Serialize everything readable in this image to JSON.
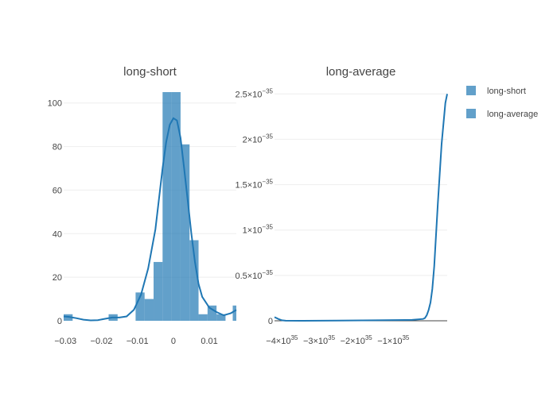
{
  "chart_data": [
    {
      "type": "histogram",
      "title": "long-short",
      "series_name": "long-short",
      "color": "#1f77b4",
      "xlim": [
        -0.0305,
        0.0175
      ],
      "ylim": [
        0,
        105
      ],
      "xticks": [
        {
          "value": -0.03,
          "label": "−0.03"
        },
        {
          "value": -0.02,
          "label": "−0.02"
        },
        {
          "value": -0.01,
          "label": "−0.01"
        },
        {
          "value": 0,
          "label": "0"
        },
        {
          "value": 0.01,
          "label": "0.01"
        }
      ],
      "yticks": [
        {
          "value": 0,
          "label": "0"
        },
        {
          "value": 20,
          "label": "20"
        },
        {
          "value": 40,
          "label": "40"
        },
        {
          "value": 60,
          "label": "60"
        },
        {
          "value": 80,
          "label": "80"
        },
        {
          "value": 100,
          "label": "100"
        }
      ],
      "bins": [
        {
          "x0": -0.0305,
          "x1": -0.028,
          "count": 3
        },
        {
          "x0": -0.018,
          "x1": -0.0155,
          "count": 3
        },
        {
          "x0": -0.0105,
          "x1": -0.008,
          "count": 13
        },
        {
          "x0": -0.008,
          "x1": -0.0055,
          "count": 10
        },
        {
          "x0": -0.0055,
          "x1": -0.003,
          "count": 27
        },
        {
          "x0": -0.003,
          "x1": -0.0005,
          "count": 105
        },
        {
          "x0": -0.0005,
          "x1": 0.002,
          "count": 105
        },
        {
          "x0": 0.002,
          "x1": 0.0045,
          "count": 81
        },
        {
          "x0": 0.0045,
          "x1": 0.007,
          "count": 37
        },
        {
          "x0": 0.007,
          "x1": 0.0095,
          "count": 3
        },
        {
          "x0": 0.0095,
          "x1": 0.012,
          "count": 7
        },
        {
          "x0": 0.012,
          "x1": 0.0145,
          "count": 3
        },
        {
          "x0": 0.0165,
          "x1": 0.0175,
          "count": 7
        }
      ],
      "kde": {
        "x": [
          -0.0305,
          -0.029,
          -0.027,
          -0.025,
          -0.023,
          -0.021,
          -0.019,
          -0.017,
          -0.015,
          -0.013,
          -0.011,
          -0.009,
          -0.007,
          -0.005,
          -0.004,
          -0.003,
          -0.002,
          -0.001,
          0,
          0.001,
          0.002,
          0.003,
          0.004,
          0.005,
          0.006,
          0.007,
          0.008,
          0.01,
          0.012,
          0.014,
          0.016,
          0.0175
        ],
        "y": [
          2,
          1.8,
          1.2,
          0.5,
          0.2,
          0.3,
          0.9,
          1.5,
          1.5,
          2,
          5,
          12,
          24,
          42,
          56,
          70,
          82,
          90,
          93,
          92,
          84,
          70,
          55,
          40,
          27,
          17,
          11,
          6,
          4,
          2.5,
          3.5,
          5
        ]
      }
    },
    {
      "type": "line",
      "title": "long-average",
      "series_name": "long-average",
      "color": "#1f77b4",
      "xlim": [
        -4.2e+35,
        4.5e+34
      ],
      "ylim": [
        0,
        2.52e-35
      ],
      "xticks": [
        {
          "value": -4e+35,
          "label": "−4×10",
          "exp": "35"
        },
        {
          "value": -3e+35,
          "label": "−3×10",
          "exp": "35"
        },
        {
          "value": -2e+35,
          "label": "−2×10",
          "exp": "35"
        },
        {
          "value": -1e+35,
          "label": "−1×10",
          "exp": "35"
        }
      ],
      "yticks": [
        {
          "value": 0,
          "label": "0",
          "exp": ""
        },
        {
          "value": 5e-36,
          "label": "0.5×10",
          "exp": "−35"
        },
        {
          "value": 1e-35,
          "label": "1×10",
          "exp": "−35"
        },
        {
          "value": 1.5e-35,
          "label": "1.5×10",
          "exp": "−35"
        },
        {
          "value": 2e-35,
          "label": "2×10",
          "exp": "−35"
        },
        {
          "value": 2.5e-35,
          "label": "2.5×10",
          "exp": "−35"
        }
      ],
      "kde": {
        "x": [
          -4.2e+35,
          -4.1e+35,
          -4e+35,
          -3.9e+35,
          -3.5e+35,
          -2.5e+35,
          -1.5e+35,
          -5e+34,
          -2e+34,
          -1.5e+34,
          -1e+34,
          -5e+33,
          0,
          5e+33,
          1e+34,
          2e+34,
          3e+34,
          4e+34,
          4.5e+34
        ],
        "y": [
          4e-37,
          2e-37,
          5e-38,
          1e-38,
          0,
          2e-38,
          5e-38,
          1e-37,
          2e-37,
          3e-37,
          6e-37,
          1.2e-36,
          2e-36,
          3.5e-36,
          6e-36,
          1.3e-35,
          1.95e-35,
          2.4e-35,
          2.5e-35
        ]
      }
    }
  ],
  "legend": {
    "placement": "right",
    "items": [
      {
        "label": "long-short",
        "color": "#1f77b4"
      },
      {
        "label": "long-average",
        "color": "#1f77b4"
      }
    ]
  }
}
